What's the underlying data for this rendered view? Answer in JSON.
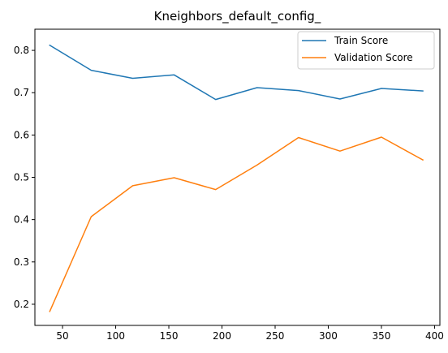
{
  "chart_data": {
    "type": "line",
    "title": "Kneighbors_default_config_",
    "xlabel": "",
    "ylabel": "",
    "xlim": [
      24,
      405
    ],
    "ylim": [
      0.15,
      0.85
    ],
    "xticks": [
      50,
      100,
      150,
      200,
      250,
      300,
      350,
      400
    ],
    "yticks": [
      0.2,
      0.3,
      0.4,
      0.5,
      0.6,
      0.7,
      0.8
    ],
    "ytick_labels": [
      "0.2",
      "0.3",
      "0.4",
      "0.5",
      "0.6",
      "0.7",
      "0.8"
    ],
    "grid": false,
    "legend_position": "top-right",
    "x": [
      38,
      77,
      116,
      155,
      194,
      233,
      272,
      311,
      350,
      389
    ],
    "series": [
      {
        "name": "Train Score",
        "color": "#1f77b4",
        "values": [
          0.812,
          0.753,
          0.734,
          0.742,
          0.684,
          0.712,
          0.705,
          0.685,
          0.71,
          0.704
        ]
      },
      {
        "name": "Validation Score",
        "color": "#ff7f0e",
        "values": [
          0.183,
          0.407,
          0.48,
          0.499,
          0.471,
          0.529,
          0.594,
          0.562,
          0.595,
          0.541
        ]
      }
    ]
  }
}
